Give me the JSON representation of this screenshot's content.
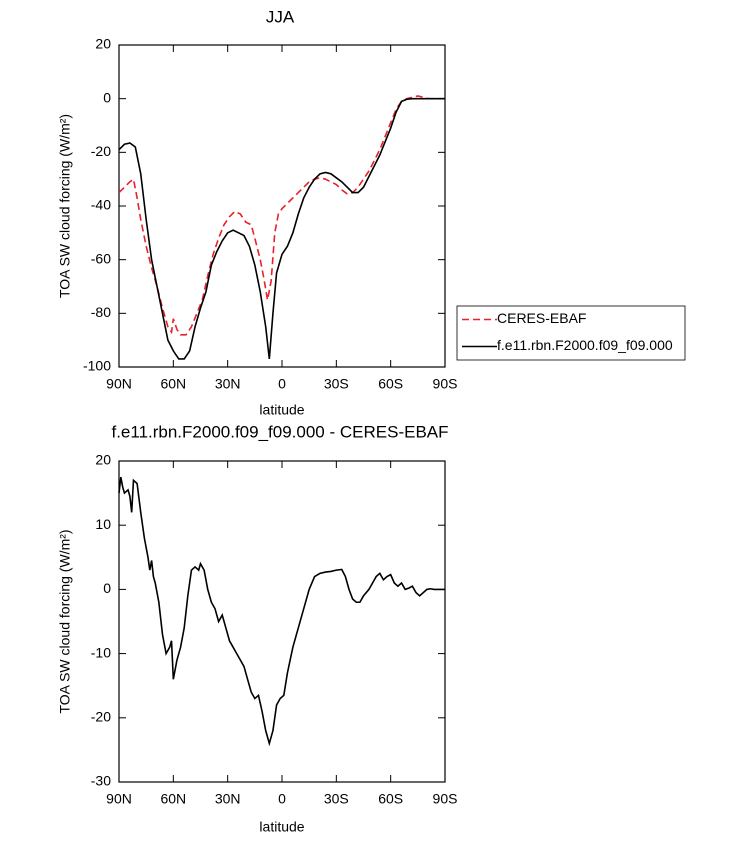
{
  "chart_data": [
    {
      "type": "line",
      "title": "JJA",
      "xlabel": "latitude",
      "ylabel": "TOA SW cloud forcing (W/m²)",
      "xlim": [
        90,
        -90
      ],
      "ylim": [
        -100,
        20
      ],
      "xticks": [
        {
          "value": 90,
          "label": "90N"
        },
        {
          "value": 60,
          "label": "60N"
        },
        {
          "value": 30,
          "label": "30N"
        },
        0,
        {
          "value": -30,
          "label": "30S"
        },
        {
          "value": -60,
          "label": "60S"
        },
        {
          "value": -90,
          "label": "90S"
        }
      ],
      "yticks": [
        20,
        0,
        -20,
        -40,
        -60,
        -80,
        -100
      ],
      "series": [
        {
          "name": "CERES-EBAF",
          "color": "#e8212a",
          "linestyle": "dashed",
          "x": [
            90,
            87,
            84,
            82,
            80,
            78,
            75,
            72,
            69,
            66,
            63,
            61,
            60,
            58,
            56,
            53,
            50,
            47,
            44,
            41,
            38,
            35,
            32,
            29,
            26,
            23,
            20,
            17,
            15,
            12,
            10,
            8,
            6,
            4,
            2,
            0,
            -3,
            -6,
            -9,
            -12,
            -15,
            -18,
            -21,
            -24,
            -27,
            -30,
            -33,
            -36,
            -39,
            -42,
            -45,
            -48,
            -51,
            -54,
            -57,
            -60,
            -63,
            -66,
            -69,
            -72,
            -75,
            -78,
            -81,
            -90
          ],
          "values": [
            -35,
            -33,
            -31,
            -30,
            -37,
            -45,
            -55,
            -63,
            -70,
            -78,
            -85,
            -87,
            -82,
            -86,
            -88,
            -88,
            -85,
            -80,
            -75,
            -66,
            -58,
            -52,
            -47,
            -44,
            -42,
            -43,
            -46,
            -47,
            -52,
            -60,
            -67,
            -75,
            -68,
            -50,
            -43,
            -41,
            -39,
            -37,
            -35,
            -33,
            -31,
            -30,
            -29.5,
            -30,
            -31,
            -32,
            -34,
            -35.5,
            -35,
            -33,
            -30,
            -27,
            -23,
            -19,
            -14,
            -9,
            -4,
            -1,
            0,
            0.5,
            1,
            0.5,
            0,
            0
          ]
        },
        {
          "name": "f.e11.rbn.F2000.f09_f09.000",
          "color": "#000000",
          "linestyle": "solid",
          "x": [
            90,
            87,
            84,
            81,
            78,
            75,
            72,
            69,
            66,
            63,
            60,
            57,
            54,
            51,
            48,
            45,
            42,
            39,
            36,
            33,
            30,
            27,
            24,
            21,
            18,
            15,
            12,
            9,
            7,
            5,
            3,
            0,
            -3,
            -6,
            -9,
            -12,
            -15,
            -18,
            -21,
            -24,
            -27,
            -30,
            -33,
            -36,
            -39,
            -42,
            -45,
            -48,
            -51,
            -54,
            -57,
            -60,
            -63,
            -66,
            -69,
            -72,
            -90
          ],
          "values": [
            -19,
            -17,
            -16.5,
            -18,
            -28,
            -45,
            -60,
            -70,
            -80,
            -90,
            -94,
            -97,
            -97,
            -94,
            -85,
            -78,
            -72,
            -62,
            -57,
            -53,
            -50,
            -49,
            -50,
            -51,
            -55,
            -62,
            -72,
            -85,
            -97,
            -80,
            -65,
            -58,
            -55,
            -50,
            -43,
            -37,
            -33,
            -30,
            -28,
            -27.5,
            -28,
            -29.5,
            -31,
            -33,
            -35,
            -35,
            -33,
            -29,
            -25,
            -21,
            -16,
            -11,
            -5,
            -1,
            -0.2,
            0,
            0
          ]
        }
      ]
    },
    {
      "type": "line",
      "title": "f.e11.rbn.F2000.f09_f09.000 - CERES-EBAF",
      "xlabel": "latitude",
      "ylabel": "TOA SW cloud forcing (W/m²)",
      "xlim": [
        90,
        -90
      ],
      "ylim": [
        -30,
        20
      ],
      "xticks": [
        {
          "value": 90,
          "label": "90N"
        },
        {
          "value": 60,
          "label": "60N"
        },
        {
          "value": 30,
          "label": "30N"
        },
        0,
        {
          "value": -30,
          "label": "30S"
        },
        {
          "value": -60,
          "label": "60S"
        },
        {
          "value": -90,
          "label": "90S"
        }
      ],
      "yticks": [
        20,
        10,
        0,
        -10,
        -20,
        -30
      ],
      "color": "#000000",
      "x": [
        90,
        89,
        88,
        87,
        85,
        84,
        83,
        82,
        80,
        78,
        76,
        74,
        73,
        72,
        71,
        70,
        68,
        66,
        64,
        62,
        61,
        60,
        58,
        56,
        54,
        52,
        50,
        48,
        46,
        45,
        43,
        41,
        39,
        37,
        35,
        33,
        31,
        29,
        27,
        25,
        23,
        21,
        19,
        17,
        15,
        13,
        11,
        9,
        7,
        5,
        3,
        1,
        -1,
        -3,
        -6,
        -9,
        -12,
        -15,
        -18,
        -21,
        -24,
        -27,
        -30,
        -33,
        -35,
        -37,
        -39,
        -41,
        -43,
        -45,
        -48,
        -50,
        -52,
        -54,
        -56,
        -58,
        -60,
        -62,
        -64,
        -66,
        -68,
        -70,
        -72,
        -74,
        -76,
        -78,
        -80,
        -82,
        -84,
        -90
      ],
      "values": [
        15,
        17.5,
        16,
        15,
        15.5,
        14.5,
        12,
        17,
        16.5,
        12,
        8,
        5,
        3,
        4.5,
        2,
        1,
        -2,
        -7,
        -10,
        -9,
        -8,
        -14,
        -11,
        -9,
        -6,
        -1,
        3,
        3.5,
        3,
        4,
        3,
        0,
        -2,
        -3,
        -5,
        -4,
        -6,
        -8,
        -9,
        -10,
        -11,
        -12,
        -14,
        -16,
        -17,
        -16.5,
        -19,
        -22,
        -24,
        -22,
        -18,
        -17,
        -16.5,
        -13,
        -9,
        -6,
        -3,
        0,
        2,
        2.5,
        2.7,
        2.8,
        3,
        3.1,
        2,
        0,
        -1.5,
        -2,
        -2,
        -1,
        0,
        1,
        2,
        2.5,
        1.5,
        2,
        2.3,
        1,
        0.5,
        1,
        0,
        0.2,
        0.5,
        -0.5,
        -1,
        -0.5,
        0,
        0.1,
        0,
        0
      ]
    }
  ]
}
